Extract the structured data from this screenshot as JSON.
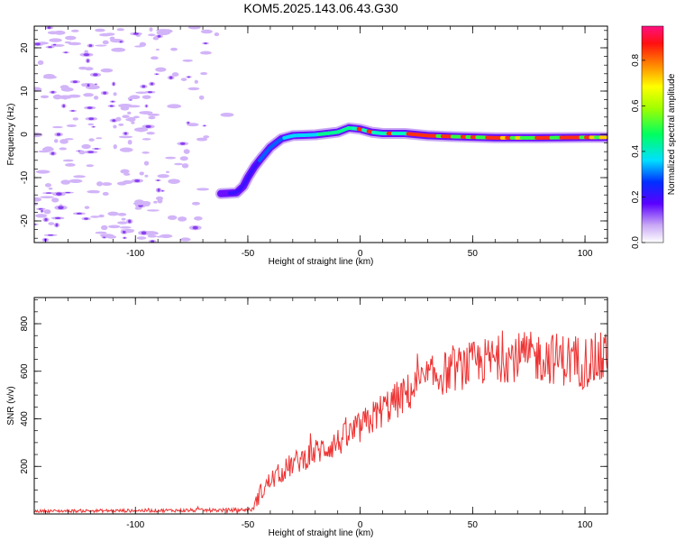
{
  "title": "KOM5.2025.143.06.43.G30",
  "chart_data": [
    {
      "type": "heatmap",
      "xlabel": "Height of straight line (km)",
      "ylabel": "Frequency (Hz)",
      "xlim": [
        -145,
        110
      ],
      "ylim": [
        -25,
        25
      ],
      "xticks": [
        -100,
        -50,
        0,
        50,
        100
      ],
      "yticks": [
        -20,
        -10,
        0,
        10,
        20
      ],
      "colorbar": {
        "label": "Normalized spectral amplitude",
        "range": [
          0,
          0.95
        ],
        "ticks": [
          0.0,
          0.2,
          0.4,
          0.6,
          0.8
        ]
      },
      "ridge": [
        [
          -62,
          -13.7
        ],
        [
          -55,
          -13.5
        ],
        [
          -52,
          -12
        ],
        [
          -50,
          -10
        ],
        [
          -47,
          -7.5
        ],
        [
          -44,
          -5.5
        ],
        [
          -40,
          -3
        ],
        [
          -35,
          -1
        ],
        [
          -30,
          -0.3
        ],
        [
          -20,
          -0.1
        ],
        [
          -10,
          0.5
        ],
        [
          -5,
          1.5
        ],
        [
          0,
          1.2
        ],
        [
          5,
          0.5
        ],
        [
          10,
          0.2
        ],
        [
          20,
          0.2
        ],
        [
          30,
          -0.3
        ],
        [
          40,
          -0.5
        ],
        [
          60,
          -0.8
        ],
        [
          80,
          -0.8
        ],
        [
          100,
          -0.7
        ],
        [
          110,
          -0.7
        ]
      ],
      "noise_region_x": [
        -145,
        -55
      ],
      "grid": false
    },
    {
      "type": "line",
      "xlabel": "Height of straight line (km)",
      "ylabel": "SNR (v/v)",
      "xlim": [
        -145,
        110
      ],
      "ylim": [
        0,
        910
      ],
      "xticks": [
        -100,
        -50,
        0,
        50,
        100
      ],
      "yticks": [
        200,
        400,
        600,
        800
      ],
      "series": [
        {
          "color": "#ee3333",
          "trend": [
            [
              -145,
              12
            ],
            [
              -100,
              14
            ],
            [
              -60,
              16
            ],
            [
              -48,
              18
            ],
            [
              -45,
              80
            ],
            [
              -40,
              140
            ],
            [
              -30,
              210
            ],
            [
              -20,
              260
            ],
            [
              -10,
              300
            ],
            [
              0,
              360
            ],
            [
              10,
              440
            ],
            [
              20,
              500
            ],
            [
              30,
              570
            ],
            [
              40,
              600
            ],
            [
              50,
              630
            ],
            [
              60,
              650
            ],
            [
              70,
              660
            ],
            [
              80,
              660
            ],
            [
              90,
              650
            ],
            [
              100,
              640
            ],
            [
              110,
              650
            ]
          ],
          "noise_amplitude": [
            [
              -145,
              6
            ],
            [
              -48,
              8
            ],
            [
              -45,
              40
            ],
            [
              0,
              70
            ],
            [
              30,
              90
            ],
            [
              110,
              120
            ]
          ]
        }
      ],
      "grid": false
    }
  ]
}
